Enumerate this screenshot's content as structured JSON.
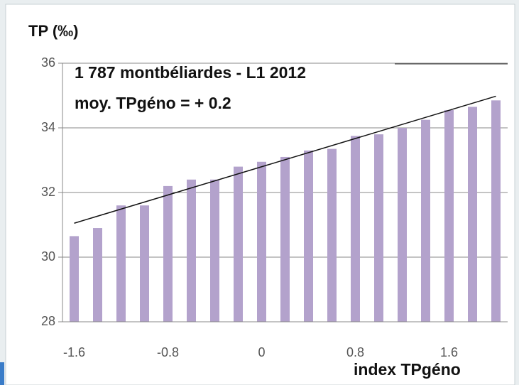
{
  "chart_data": {
    "type": "bar",
    "title": "TP (‰)",
    "annotations": [
      "1 787 montbéliardes - L1 2012",
      "moy. TPgéno = + 0.2"
    ],
    "x_label": "index TPgéno",
    "categories": [
      "-1.6",
      null,
      null,
      null,
      "-0.8",
      null,
      null,
      null,
      "0",
      null,
      null,
      null,
      "0.8",
      null,
      null,
      null,
      "1.6",
      null,
      null
    ],
    "values": [
      30.65,
      30.9,
      31.6,
      31.6,
      32.2,
      32.4,
      32.4,
      32.8,
      32.95,
      33.1,
      33.3,
      33.35,
      33.75,
      33.8,
      34.0,
      34.25,
      34.55,
      34.65,
      34.85
    ],
    "color": "#b3a2cc",
    "trendline": [
      31.05,
      34.98
    ],
    "ylim": [
      28,
      36
    ],
    "yticks": [
      28,
      30,
      32,
      34,
      36
    ],
    "grid": true
  }
}
